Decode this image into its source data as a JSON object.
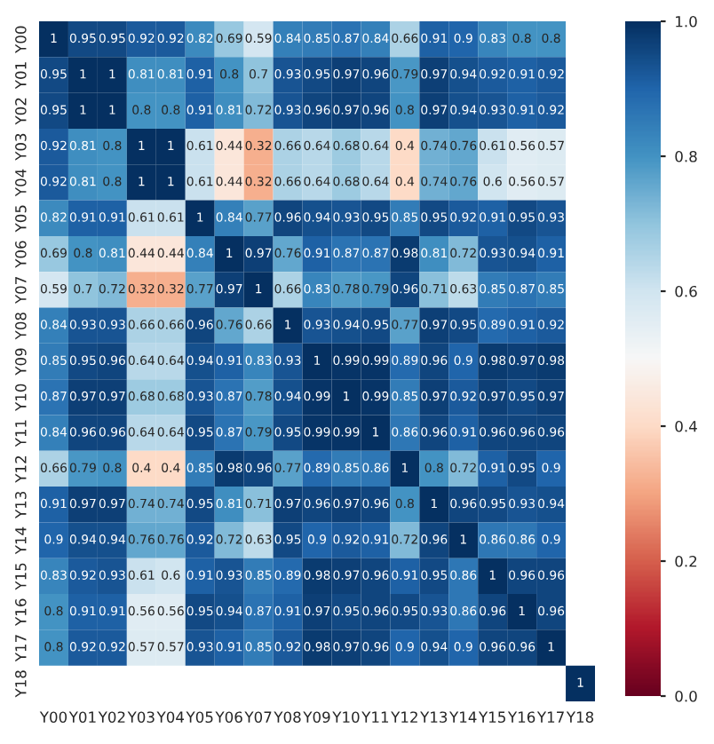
{
  "chart_data": {
    "type": "heatmap",
    "categories": [
      "Y00",
      "Y01",
      "Y02",
      "Y03",
      "Y04",
      "Y05",
      "Y06",
      "Y07",
      "Y08",
      "Y09",
      "Y10",
      "Y11",
      "Y12",
      "Y13",
      "Y14",
      "Y15",
      "Y16",
      "Y17",
      "Y18"
    ],
    "y_categories": [
      "Y00",
      "Y01",
      "Y02",
      "Y03",
      "Y04",
      "Y05",
      "Y06",
      "Y07",
      "Y08",
      "Y09",
      "Y10",
      "Y11",
      "Y12",
      "Y13",
      "Y14",
      "Y15",
      "Y16",
      "Y17",
      "Y18"
    ],
    "cells": [
      [
        1,
        0.95,
        0.95,
        0.92,
        0.92,
        0.82,
        0.69,
        0.59,
        0.84,
        0.85,
        0.87,
        0.84,
        0.66,
        0.91,
        0.9,
        0.83,
        0.8,
        0.8,
        null
      ],
      [
        0.95,
        1,
        1,
        0.81,
        0.81,
        0.91,
        0.8,
        0.7,
        0.93,
        0.95,
        0.97,
        0.96,
        0.79,
        0.97,
        0.94,
        0.92,
        0.91,
        0.92,
        null
      ],
      [
        0.95,
        1,
        1,
        0.8,
        0.8,
        0.91,
        0.81,
        0.72,
        0.93,
        0.96,
        0.97,
        0.96,
        0.8,
        0.97,
        0.94,
        0.93,
        0.91,
        0.92,
        null
      ],
      [
        0.92,
        0.81,
        0.8,
        1,
        1,
        0.61,
        0.44,
        0.32,
        0.66,
        0.64,
        0.68,
        0.64,
        0.4,
        0.74,
        0.76,
        0.61,
        0.56,
        0.57,
        null
      ],
      [
        0.92,
        0.81,
        0.8,
        1,
        1,
        0.61,
        0.44,
        0.32,
        0.66,
        0.64,
        0.68,
        0.64,
        0.4,
        0.74,
        0.76,
        0.6,
        0.56,
        0.57,
        null
      ],
      [
        0.82,
        0.91,
        0.91,
        0.61,
        0.61,
        1,
        0.84,
        0.77,
        0.96,
        0.94,
        0.93,
        0.95,
        0.85,
        0.95,
        0.92,
        0.91,
        0.95,
        0.93,
        null
      ],
      [
        0.69,
        0.8,
        0.81,
        0.44,
        0.44,
        0.84,
        1,
        0.97,
        0.76,
        0.91,
        0.87,
        0.87,
        0.98,
        0.81,
        0.72,
        0.93,
        0.94,
        0.91,
        null
      ],
      [
        0.59,
        0.7,
        0.72,
        0.32,
        0.32,
        0.77,
        0.97,
        1,
        0.66,
        0.83,
        0.78,
        0.79,
        0.96,
        0.71,
        0.63,
        0.85,
        0.87,
        0.85,
        null
      ],
      [
        0.84,
        0.93,
        0.93,
        0.66,
        0.66,
        0.96,
        0.76,
        0.66,
        1,
        0.93,
        0.94,
        0.95,
        0.77,
        0.97,
        0.95,
        0.89,
        0.91,
        0.92,
        null
      ],
      [
        0.85,
        0.95,
        0.96,
        0.64,
        0.64,
        0.94,
        0.91,
        0.83,
        0.93,
        1,
        0.99,
        0.99,
        0.89,
        0.96,
        0.9,
        0.98,
        0.97,
        0.98,
        null
      ],
      [
        0.87,
        0.97,
        0.97,
        0.68,
        0.68,
        0.93,
        0.87,
        0.78,
        0.94,
        0.99,
        1,
        0.99,
        0.85,
        0.97,
        0.92,
        0.97,
        0.95,
        0.97,
        null
      ],
      [
        0.84,
        0.96,
        0.96,
        0.64,
        0.64,
        0.95,
        0.87,
        0.79,
        0.95,
        0.99,
        0.99,
        1,
        0.86,
        0.96,
        0.91,
        0.96,
        0.96,
        0.96,
        null
      ],
      [
        0.66,
        0.79,
        0.8,
        0.4,
        0.4,
        0.85,
        0.98,
        0.96,
        0.77,
        0.89,
        0.85,
        0.86,
        1,
        0.8,
        0.72,
        0.91,
        0.95,
        0.9,
        null
      ],
      [
        0.91,
        0.97,
        0.97,
        0.74,
        0.74,
        0.95,
        0.81,
        0.71,
        0.97,
        0.96,
        0.97,
        0.96,
        0.8,
        1,
        0.96,
        0.95,
        0.93,
        0.94,
        null
      ],
      [
        0.9,
        0.94,
        0.94,
        0.76,
        0.76,
        0.92,
        0.72,
        0.63,
        0.95,
        0.9,
        0.92,
        0.91,
        0.72,
        0.96,
        1,
        0.86,
        0.86,
        0.9,
        null
      ],
      [
        0.83,
        0.92,
        0.93,
        0.61,
        0.6,
        0.91,
        0.93,
        0.85,
        0.89,
        0.98,
        0.97,
        0.96,
        0.91,
        0.95,
        0.86,
        1,
        0.96,
        0.96,
        null
      ],
      [
        0.8,
        0.91,
        0.91,
        0.56,
        0.56,
        0.95,
        0.94,
        0.87,
        0.91,
        0.97,
        0.95,
        0.96,
        0.95,
        0.93,
        0.86,
        0.96,
        1,
        0.96,
        null
      ],
      [
        0.8,
        0.92,
        0.92,
        0.57,
        0.57,
        0.93,
        0.91,
        0.85,
        0.92,
        0.98,
        0.97,
        0.96,
        0.9,
        0.94,
        0.9,
        0.96,
        0.96,
        1,
        null
      ],
      [
        null,
        null,
        null,
        null,
        null,
        null,
        null,
        null,
        null,
        null,
        null,
        null,
        null,
        null,
        null,
        null,
        null,
        null,
        1
      ]
    ],
    "clim": [
      0,
      1
    ],
    "cticks": [
      {
        "value": 0,
        "label": "0.0"
      },
      {
        "value": 0.2,
        "label": "0.2"
      },
      {
        "value": 0.4,
        "label": "0.4"
      },
      {
        "value": 0.6,
        "label": "0.6"
      },
      {
        "value": 0.8,
        "label": "0.8"
      },
      {
        "value": 1,
        "label": "1.0"
      }
    ],
    "data_labels": true
  }
}
